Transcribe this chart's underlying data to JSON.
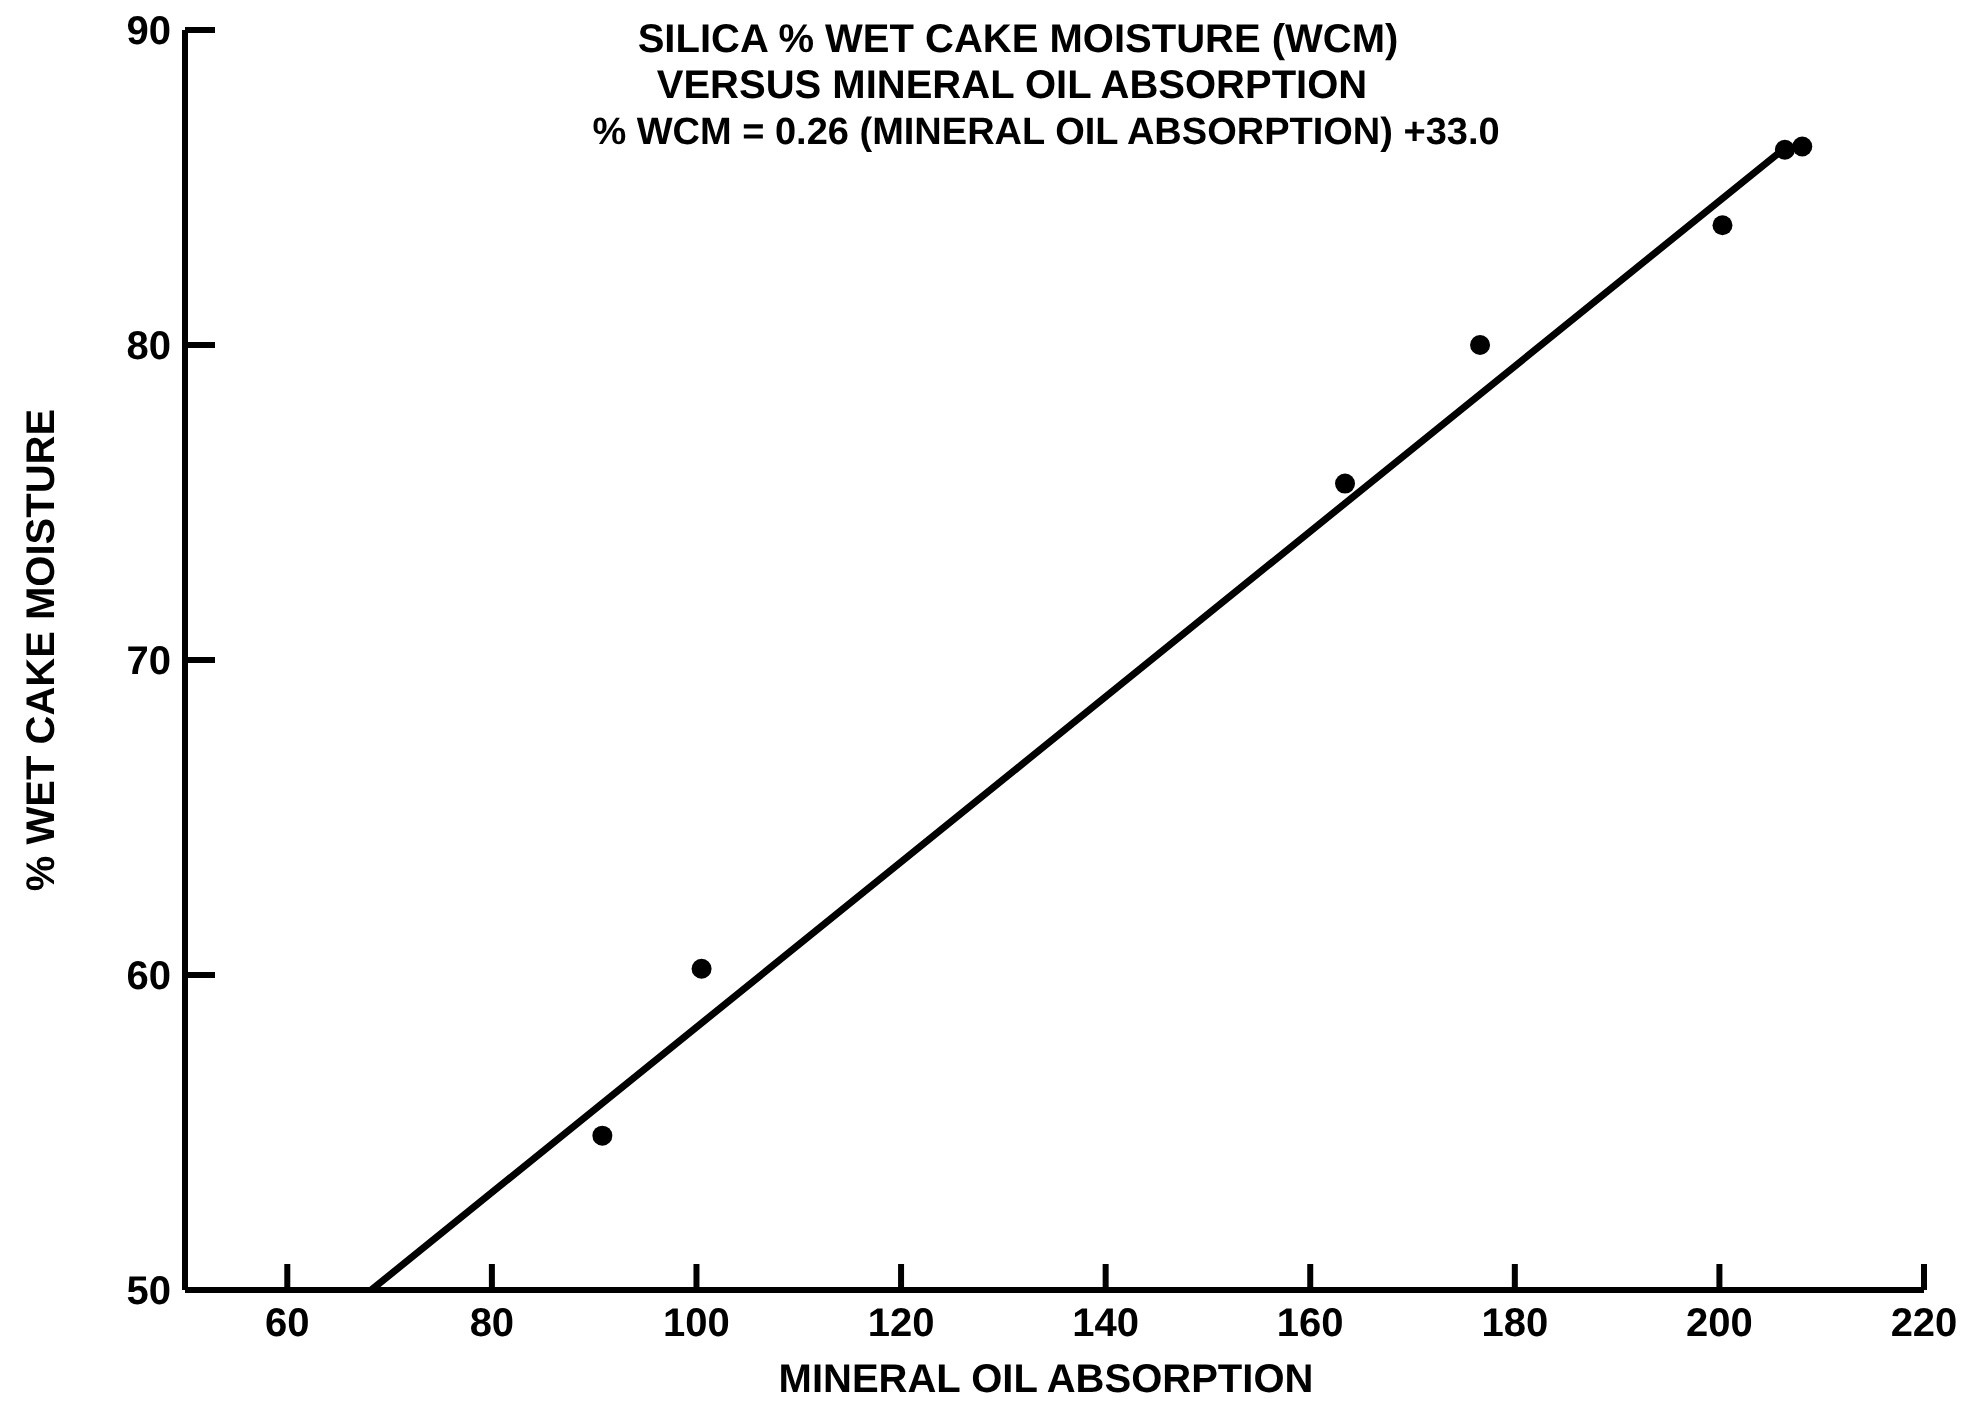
{
  "chart_data": {
    "type": "scatter",
    "title": "SILICA % WET CAKE MOISTURE (WCM)",
    "subtitle": "VERSUS MINERAL OIL ABSORPTION",
    "annotations": [
      "% WCM = 0.26 (MINERAL OIL ABSORPTION) +33.0"
    ],
    "xlabel": "MINERAL OIL ABSORPTION",
    "ylabel": "% WET CAKE MOISTURE",
    "xlim": [
      50,
      220
    ],
    "xticks": [
      60,
      80,
      100,
      120,
      140,
      160,
      180,
      200,
      220
    ],
    "ylim": [
      50,
      90
    ],
    "yticks": [
      50,
      60,
      70,
      80,
      90
    ],
    "marker": "circle",
    "series": [
      {
        "color": "#000000",
        "x": [
          90.8,
          100.5,
          163.4,
          176.6,
          200.3,
          206.4,
          208.1
        ],
        "values": [
          54.9,
          60.2,
          75.6,
          80.0,
          83.8,
          86.2,
          86.3
        ]
      },
      {
        "type": "line",
        "color": "#000000",
        "marker": "none",
        "x": [
          68.2,
          206.2
        ],
        "values": [
          50,
          86.2
        ]
      }
    ]
  }
}
